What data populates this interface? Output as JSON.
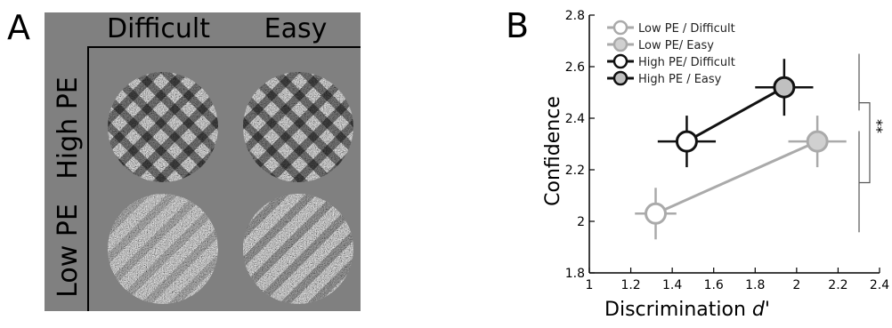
{
  "panel_a": {
    "letter": "A",
    "col_headers": [
      "Difficult",
      "Easy"
    ],
    "row_headers": [
      "High PE",
      "Low PE"
    ],
    "background_color": "#808080"
  },
  "panel_b": {
    "letter": "B",
    "significance": "**"
  },
  "chart_data": {
    "type": "scatter",
    "xlabel": "Discrimination d'",
    "ylabel": "Confidence",
    "xlim": [
      1,
      2.4
    ],
    "ylim": [
      1.8,
      2.8
    ],
    "xticks": [
      "1",
      "1.2",
      "1.4",
      "1.6",
      "1.8",
      "2",
      "2.2",
      "2.4"
    ],
    "yticks": [
      "1.8",
      "2",
      "2.2",
      "2.4",
      "2.6",
      "2.8"
    ],
    "grid": false,
    "legend_position": "top-left",
    "series": [
      {
        "name": "Low PE / Difficult",
        "x": 1.32,
        "y": 2.03,
        "xerr": 0.1,
        "yerr": 0.1,
        "stroke": "#aaaaaa",
        "fill": "#ffffff",
        "line_group": "low"
      },
      {
        "name": "Low PE/ Easy",
        "x": 2.1,
        "y": 2.31,
        "xerr": 0.14,
        "yerr": 0.1,
        "stroke": "#aaaaaa",
        "fill": "#d0d0d0",
        "line_group": "low"
      },
      {
        "name": "High PE/ Difficult",
        "x": 1.47,
        "y": 2.31,
        "xerr": 0.14,
        "yerr": 0.1,
        "stroke": "#111111",
        "fill": "#ffffff",
        "line_group": "high"
      },
      {
        "name": "High PE / Easy",
        "x": 1.94,
        "y": 2.52,
        "xerr": 0.14,
        "yerr": 0.11,
        "stroke": "#111111",
        "fill": "#c0c0c0",
        "line_group": "high"
      }
    ],
    "lines": [
      {
        "group": "low",
        "color": "#aaaaaa"
      },
      {
        "group": "high",
        "color": "#111111"
      }
    ]
  }
}
